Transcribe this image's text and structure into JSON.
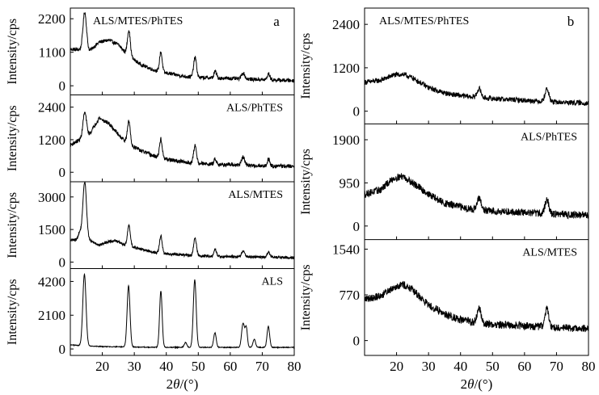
{
  "figure": {
    "panel_letters": [
      "a",
      "b"
    ]
  },
  "chart_data": [
    {
      "type": "line",
      "panel": "a",
      "xlabel_prefix": "2",
      "xlabel_theta": "θ",
      "xlabel_unit": "/(°)",
      "xlim": [
        10,
        80
      ],
      "xticks": [
        20,
        30,
        40,
        50,
        60,
        70,
        80
      ],
      "subplots": [
        {
          "label": "ALS/MTES/PhTES",
          "ylabel": "Intensity/cps",
          "ylim": [
            -300,
            2550
          ],
          "yticks": [
            0,
            1100,
            2200
          ],
          "baseline": [
            [
              10,
              1200
            ],
            [
              13,
              1180
            ],
            [
              16,
              1150
            ],
            [
              19,
              1430
            ],
            [
              22,
              1500
            ],
            [
              25,
              1350
            ],
            [
              28,
              1000
            ],
            [
              32,
              700
            ],
            [
              36,
              520
            ],
            [
              40,
              420
            ],
            [
              45,
              320
            ],
            [
              50,
              270
            ],
            [
              60,
              240
            ],
            [
              70,
              200
            ],
            [
              80,
              170
            ]
          ],
          "noise": 60,
          "peaks": [
            [
              14.5,
              1250,
              0.55
            ],
            [
              28.3,
              850,
              0.45
            ],
            [
              38.3,
              650,
              0.4
            ],
            [
              49.0,
              650,
              0.45
            ],
            [
              55.3,
              220,
              0.4
            ],
            [
              64.0,
              200,
              0.5
            ],
            [
              72.0,
              200,
              0.4
            ]
          ]
        },
        {
          "label": "ALS/PhTES",
          "ylabel": "Intensity/cps",
          "ylim": [
            -350,
            2850
          ],
          "yticks": [
            0,
            1200,
            2400
          ],
          "baseline": [
            [
              10,
              1000
            ],
            [
              13,
              1200
            ],
            [
              16,
              1400
            ],
            [
              19,
              2000
            ],
            [
              22,
              1800
            ],
            [
              25,
              1400
            ],
            [
              28,
              1050
            ],
            [
              32,
              800
            ],
            [
              36,
              600
            ],
            [
              40,
              480
            ],
            [
              45,
              380
            ],
            [
              50,
              320
            ],
            [
              60,
              270
            ],
            [
              70,
              240
            ],
            [
              80,
              220
            ]
          ],
          "noise": 70,
          "peaks": [
            [
              14.5,
              900,
              0.55
            ],
            [
              28.3,
              850,
              0.45
            ],
            [
              38.3,
              700,
              0.4
            ],
            [
              49.0,
              650,
              0.45
            ],
            [
              55.3,
              200,
              0.4
            ],
            [
              64.0,
              300,
              0.5
            ],
            [
              72.0,
              250,
              0.4
            ]
          ]
        },
        {
          "label": "ALS/MTES",
          "ylabel": "Intensity/cps",
          "ylim": [
            -300,
            3700
          ],
          "yticks": [
            0,
            1500,
            3000
          ],
          "baseline": [
            [
              10,
              1000
            ],
            [
              12,
              1050
            ],
            [
              13,
              1400
            ],
            [
              16,
              1000
            ],
            [
              19,
              780
            ],
            [
              22,
              950
            ],
            [
              24,
              1000
            ],
            [
              27,
              780
            ],
            [
              32,
              600
            ],
            [
              36,
              450
            ],
            [
              40,
              380
            ],
            [
              45,
              330
            ],
            [
              50,
              280
            ],
            [
              60,
              250
            ],
            [
              70,
              230
            ],
            [
              80,
              200
            ]
          ],
          "noise": 60,
          "peaks": [
            [
              14.5,
              2500,
              0.55
            ],
            [
              28.3,
              950,
              0.45
            ],
            [
              38.3,
              800,
              0.4
            ],
            [
              49.0,
              800,
              0.45
            ],
            [
              55.3,
              300,
              0.4
            ],
            [
              64.0,
              250,
              0.5
            ],
            [
              72.0,
              250,
              0.4
            ]
          ]
        },
        {
          "label": "ALS",
          "ylabel": "Intensity/cps",
          "ylim": [
            -400,
            5000
          ],
          "yticks": [
            0,
            2100,
            4200
          ],
          "baseline": [
            [
              10,
              250
            ],
            [
              20,
              150
            ],
            [
              30,
              120
            ],
            [
              40,
              100
            ],
            [
              50,
              100
            ],
            [
              60,
              100
            ],
            [
              70,
              100
            ],
            [
              80,
              100
            ]
          ],
          "noise": 25,
          "peaks": [
            [
              14.4,
              4450,
              0.5
            ],
            [
              28.2,
              3800,
              0.45
            ],
            [
              38.3,
              3500,
              0.4
            ],
            [
              46.0,
              300,
              0.4
            ],
            [
              48.9,
              4200,
              0.45
            ],
            [
              55.2,
              900,
              0.4
            ],
            [
              64.0,
              1500,
              0.45
            ],
            [
              65.0,
              1200,
              0.35
            ],
            [
              67.5,
              500,
              0.4
            ],
            [
              71.9,
              1300,
              0.4
            ]
          ]
        }
      ]
    },
    {
      "type": "line",
      "panel": "b",
      "xlabel_prefix": "2",
      "xlabel_theta": "θ",
      "xlabel_unit": "/(°)",
      "xlim": [
        10,
        80
      ],
      "xticks": [
        20,
        30,
        40,
        50,
        60,
        70,
        80
      ],
      "subplots": [
        {
          "label": "ALS/MTES/PhTES",
          "ylabel": "Intensity/cps",
          "ylim": [
            -350,
            2850
          ],
          "yticks": [
            0,
            1200,
            2400
          ],
          "baseline": [
            [
              10,
              800
            ],
            [
              15,
              850
            ],
            [
              19,
              1000
            ],
            [
              22,
              1020
            ],
            [
              25,
              920
            ],
            [
              30,
              650
            ],
            [
              35,
              500
            ],
            [
              40,
              430
            ],
            [
              45,
              380
            ],
            [
              50,
              350
            ],
            [
              60,
              300
            ],
            [
              70,
              250
            ],
            [
              80,
              220
            ]
          ],
          "noise": 70,
          "peaks": [
            [
              45.8,
              250,
              0.6
            ],
            [
              67.0,
              350,
              0.6
            ]
          ]
        },
        {
          "label": "ALS/PhTES",
          "ylabel": "Intensity/cps",
          "ylim": [
            -300,
            2250
          ],
          "yticks": [
            0,
            950,
            1900
          ],
          "baseline": [
            [
              10,
              700
            ],
            [
              15,
              800
            ],
            [
              19,
              1050
            ],
            [
              22,
              1100
            ],
            [
              25,
              950
            ],
            [
              30,
              700
            ],
            [
              35,
              500
            ],
            [
              40,
              420
            ],
            [
              45,
              360
            ],
            [
              50,
              330
            ],
            [
              60,
              300
            ],
            [
              70,
              260
            ],
            [
              80,
              240
            ]
          ],
          "noise": 80,
          "peaks": [
            [
              45.8,
              250,
              0.6
            ],
            [
              67.0,
              300,
              0.6
            ]
          ]
        },
        {
          "label": "ALS/MTES",
          "ylabel": "Intensity/cps",
          "ylim": [
            -250,
            1700
          ],
          "yticks": [
            0,
            770,
            1540
          ],
          "baseline": [
            [
              10,
              700
            ],
            [
              15,
              750
            ],
            [
              19,
              900
            ],
            [
              22,
              950
            ],
            [
              25,
              850
            ],
            [
              30,
              600
            ],
            [
              35,
              450
            ],
            [
              40,
              350
            ],
            [
              45,
              300
            ],
            [
              50,
              270
            ],
            [
              60,
              250
            ],
            [
              70,
              220
            ],
            [
              80,
              190
            ]
          ],
          "noise": 65,
          "peaks": [
            [
              45.8,
              250,
              0.6
            ],
            [
              67.0,
              300,
              0.6
            ]
          ]
        }
      ]
    }
  ]
}
